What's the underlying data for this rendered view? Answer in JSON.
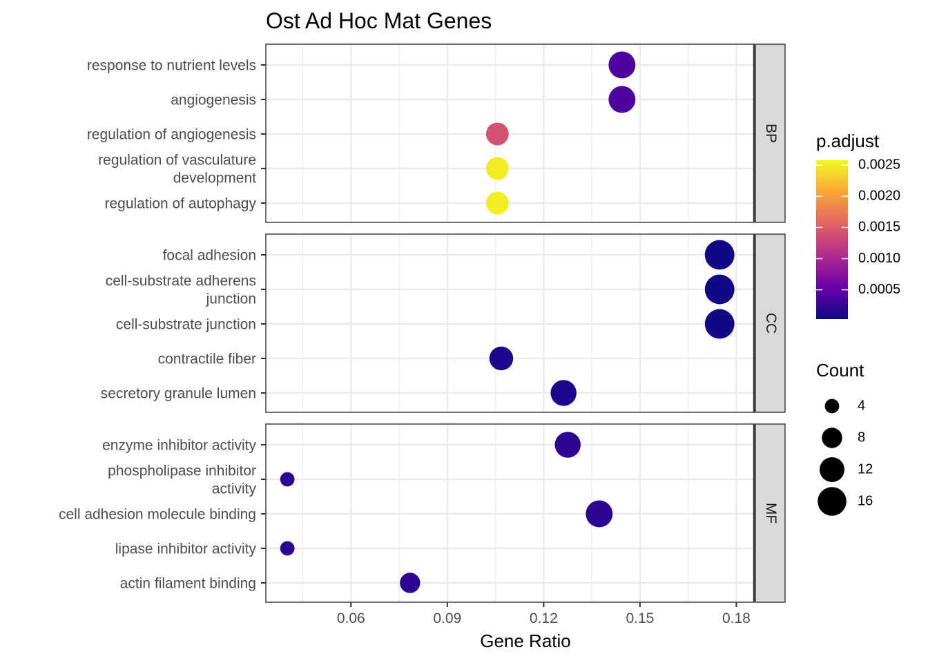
{
  "chart_data": {
    "type": "scatter",
    "title": "Ost Ad Hoc Mat Genes",
    "xlabel": "Gene Ratio",
    "xlim": [
      0.0335,
      0.1855
    ],
    "xticks": [
      0.06,
      0.09,
      0.12,
      0.15,
      0.18
    ],
    "xtick_labels": [
      "0.06",
      "0.09",
      "0.12",
      "0.15",
      "0.18"
    ],
    "grid": true,
    "panels": [
      {
        "name": "BP",
        "terms": [
          {
            "label": [
              "response to nutrient levels"
            ],
            "gene_ratio": 0.1444,
            "count": 14,
            "p_adjust": 0.0004
          },
          {
            "label": [
              "angiogenesis"
            ],
            "gene_ratio": 0.1444,
            "count": 14,
            "p_adjust": 0.0004
          },
          {
            "label": [
              "regulation of angiogenesis"
            ],
            "gene_ratio": 0.1056,
            "count": 10,
            "p_adjust": 0.0014
          },
          {
            "label": [
              "regulation of vasculature",
              "development"
            ],
            "gene_ratio": 0.1056,
            "count": 10,
            "p_adjust": 0.0025
          },
          {
            "label": [
              "regulation of autophagy"
            ],
            "gene_ratio": 0.1056,
            "count": 10,
            "p_adjust": 0.0025
          }
        ]
      },
      {
        "name": "CC",
        "terms": [
          {
            "label": [
              "focal adhesion"
            ],
            "gene_ratio": 0.1748,
            "count": 17,
            "p_adjust": 5e-05
          },
          {
            "label": [
              "cell-substrate adherens",
              "junction"
            ],
            "gene_ratio": 0.1748,
            "count": 17,
            "p_adjust": 5e-05
          },
          {
            "label": [
              "cell-substrate junction"
            ],
            "gene_ratio": 0.1748,
            "count": 17,
            "p_adjust": 5e-05
          },
          {
            "label": [
              "contractile fiber"
            ],
            "gene_ratio": 0.1068,
            "count": 11,
            "p_adjust": 0.0001
          },
          {
            "label": [
              "secretory granule lumen"
            ],
            "gene_ratio": 0.1262,
            "count": 13,
            "p_adjust": 0.00012
          }
        ]
      },
      {
        "name": "MF",
        "terms": [
          {
            "label": [
              "enzyme inhibitor activity"
            ],
            "gene_ratio": 0.1275,
            "count": 13,
            "p_adjust": 0.0002
          },
          {
            "label": [
              "phospholipase inhibitor",
              "activity"
            ],
            "gene_ratio": 0.0402,
            "count": 4,
            "p_adjust": 0.0002
          },
          {
            "label": [
              "cell adhesion molecule binding"
            ],
            "gene_ratio": 0.1373,
            "count": 14,
            "p_adjust": 0.0002
          },
          {
            "label": [
              "lipase inhibitor activity"
            ],
            "gene_ratio": 0.0402,
            "count": 4,
            "p_adjust": 0.0002
          },
          {
            "label": [
              "actin filament binding"
            ],
            "gene_ratio": 0.0784,
            "count": 8,
            "p_adjust": 0.0002
          }
        ]
      }
    ],
    "color_legend": {
      "title": "p.adjust",
      "ticks": [
        0.0005,
        0.001,
        0.0015,
        0.002,
        0.0025
      ],
      "tick_labels": [
        "0.0005",
        "0.0010",
        "0.0015",
        "0.0020",
        "0.0025"
      ],
      "range": [
        3e-05,
        0.00258
      ],
      "colors": [
        "#0d0887",
        "#6a00a8",
        "#b12a90",
        "#e16462",
        "#fca636",
        "#f0f921"
      ]
    },
    "size_legend": {
      "title": "Count",
      "values": [
        4,
        8,
        12,
        16
      ],
      "labels": [
        "4",
        "8",
        "12",
        "16"
      ]
    },
    "legend_position": "right"
  }
}
